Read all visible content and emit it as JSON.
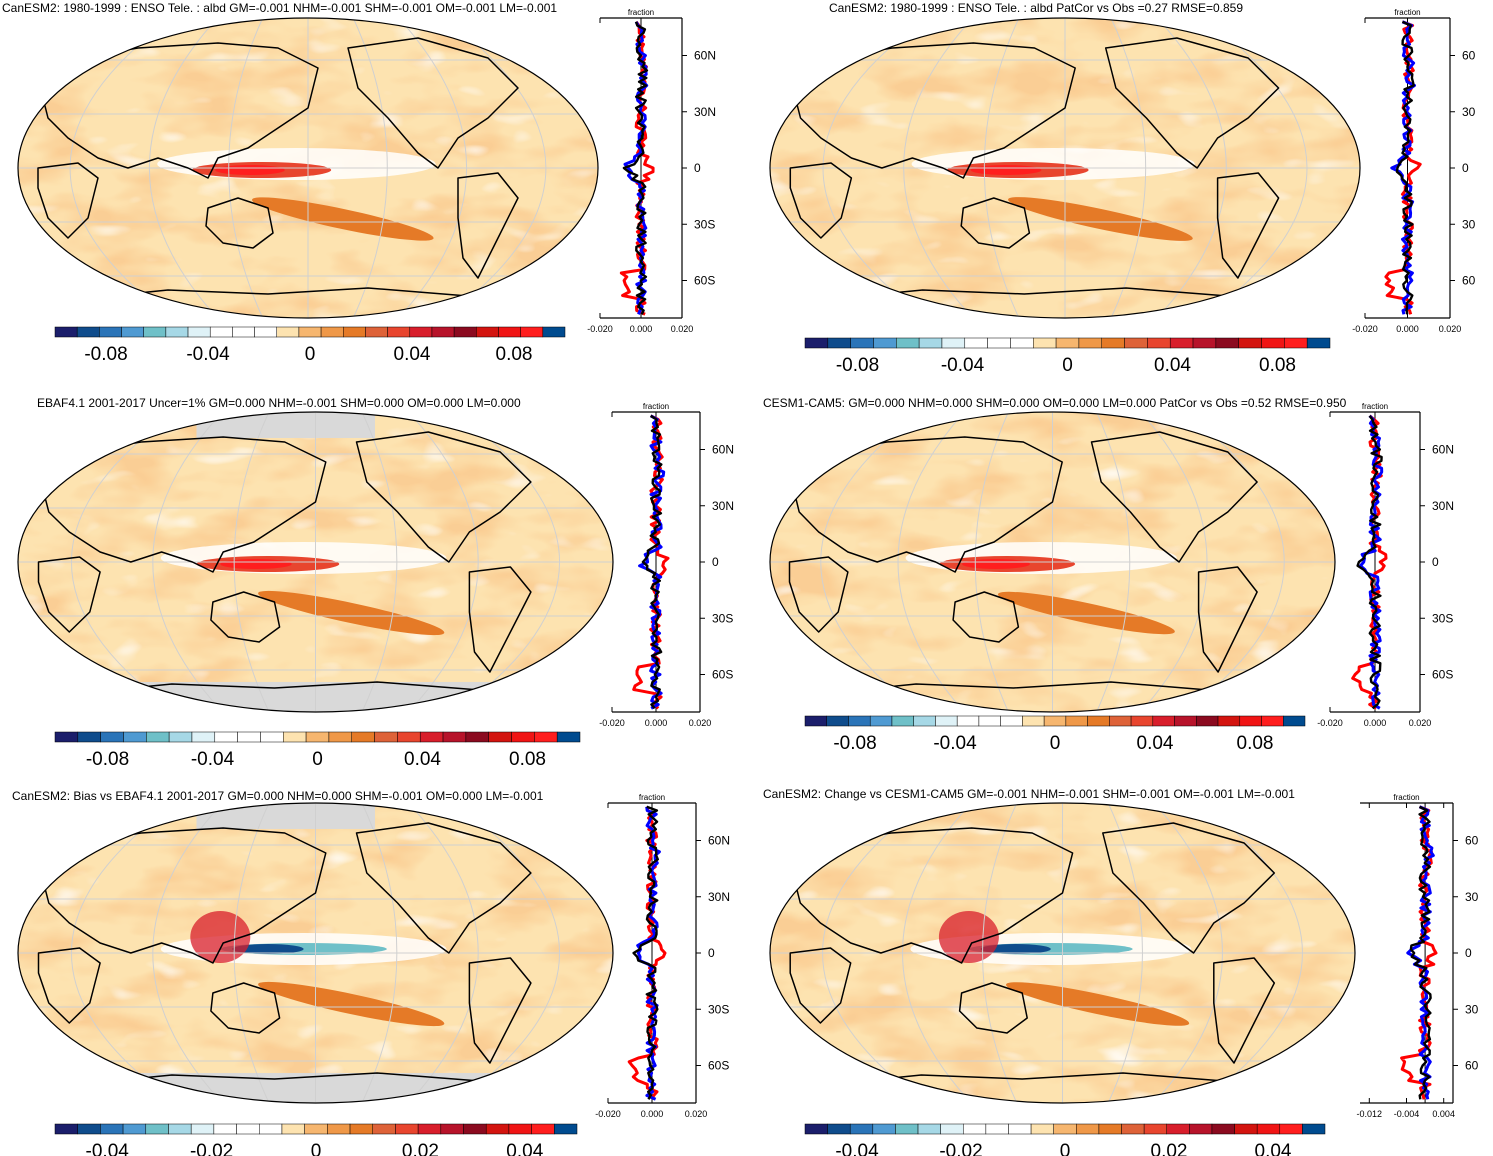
{
  "figure": {
    "description_id": "enso-albedo-teleconnection-panels"
  },
  "colors": {
    "land_outline": "#000000",
    "grid": "#d0d0d0",
    "missing": "#d9d9d9",
    "line_obs": "#ff0000",
    "line_model": "#0000ff",
    "line_mean": "#000000",
    "colorbar_main": [
      "#1b1e6b",
      "#0f4c8c",
      "#2a74b8",
      "#4f9ad2",
      "#6fc0c8",
      "#a6d8e6",
      "#dff2f7",
      "#ffffff",
      "#ffffff",
      "#ffffff",
      "#fde3b0",
      "#f6b66f",
      "#ef9848",
      "#e57a27",
      "#de6238",
      "#e8452e",
      "#d81e2b",
      "#b7132a",
      "#8b0a1f",
      "#d3140f",
      "#f01414",
      "#ff1e1e",
      "#004b8f"
    ],
    "colorbar_diff": [
      "#1b1e6b",
      "#0f4c8c",
      "#2a74b8",
      "#4f9ad2",
      "#6fc0c8",
      "#a6d8e6",
      "#dff2f7",
      "#ffffff",
      "#ffffff",
      "#ffffff",
      "#fde3b0",
      "#f6b66f",
      "#ef9848",
      "#e57a27",
      "#de6238",
      "#e8452e",
      "#d81e2b",
      "#b7132a",
      "#8b0a1f",
      "#d3140f",
      "#f01414",
      "#ff1e1e",
      "#004b8f"
    ]
  },
  "chart_data": [
    {
      "type": "heatmap",
      "panel_id": "p1",
      "title": "CanESM2: 1980-1999 : ENSO Tele. : albd GM=-0.001 NHM=-0.001 SHM=-0.001 OM=-0.001 LM=-0.001",
      "colorbar_ticks": [
        "-0.08",
        "-0.04",
        "0",
        "0.04",
        "0.08"
      ],
      "colorbar_range": [
        -0.1,
        0.1
      ],
      "zonal": {
        "xlabel": "fraction",
        "xticks": [
          "-0.020",
          "0.000",
          "0.020"
        ],
        "xlim": [
          -0.02,
          0.02
        ],
        "yticks": [
          "60N",
          "30N",
          "0",
          "30S",
          "60S"
        ],
        "ylim": [
          -80,
          80
        ]
      }
    },
    {
      "type": "heatmap",
      "panel_id": "p2",
      "title": "CanESM2: 1980-1999 : ENSO Tele. : albd PatCor vs Obs =0.27 RMSE=0.859",
      "colorbar_ticks": [
        "-0.08",
        "-0.04",
        "0",
        "0.04",
        "0.08"
      ],
      "colorbar_range": [
        -0.1,
        0.1
      ],
      "zonal": {
        "xlabel": "fraction",
        "xticks": [
          "-0.020",
          "0.000",
          "0.020"
        ],
        "xlim": [
          -0.02,
          0.02
        ],
        "yticks": [
          "60",
          "30",
          "0",
          "30",
          "60"
        ],
        "ylim": [
          -80,
          80
        ]
      }
    },
    {
      "type": "heatmap",
      "panel_id": "p3",
      "title": "EBAF4.1 2001-2017 Uncer=1% GM=0.000 NHM=-0.001 SHM=0.000 OM=0.000 LM=0.000",
      "colorbar_ticks": [
        "-0.08",
        "-0.04",
        "0",
        "0.04",
        "0.08"
      ],
      "colorbar_range": [
        -0.1,
        0.1
      ],
      "zonal": {
        "xlabel": "fraction",
        "xticks": [
          "-0.020",
          "0.000",
          "0.020"
        ],
        "xlim": [
          -0.02,
          0.02
        ],
        "yticks": [
          "60N",
          "30N",
          "0",
          "30S",
          "60S"
        ],
        "ylim": [
          -80,
          80
        ]
      }
    },
    {
      "type": "heatmap",
      "panel_id": "p4",
      "title": "CESM1-CAM5: GM=0.000 NHM=0.000 SHM=0.000 OM=0.000 LM=0.000 PatCor vs Obs =0.52 RMSE=0.950",
      "colorbar_ticks": [
        "-0.08",
        "-0.04",
        "0",
        "0.04",
        "0.08"
      ],
      "colorbar_range": [
        -0.1,
        0.1
      ],
      "zonal": {
        "xlabel": "fraction",
        "xticks": [
          "-0.020",
          "0.000",
          "0.020"
        ],
        "xlim": [
          -0.02,
          0.02
        ],
        "yticks": [
          "60N",
          "30N",
          "0",
          "30S",
          "60S"
        ],
        "ylim": [
          -80,
          80
        ]
      }
    },
    {
      "type": "heatmap",
      "panel_id": "p5",
      "title": "CanESM2: Bias vs EBAF4.1 2001-2017 GM=0.000 NHM=0.000 SHM=-0.001 OM=0.000 LM=-0.001",
      "colorbar_ticks": [
        "-0.04",
        "-0.02",
        "0",
        "0.02",
        "0.04"
      ],
      "colorbar_range": [
        -0.05,
        0.05
      ],
      "zonal": {
        "xlabel": "fraction",
        "xticks": [
          "-0.020",
          "0.000",
          "0.020"
        ],
        "xlim": [
          -0.02,
          0.02
        ],
        "yticks": [
          "60N",
          "30N",
          "0",
          "30S",
          "60S"
        ],
        "ylim": [
          -80,
          80
        ]
      }
    },
    {
      "type": "heatmap",
      "panel_id": "p6",
      "title": "CanESM2: Change vs CESM1-CAM5 GM=-0.001 NHM=-0.001 SHM=-0.001 OM=-0.001 LM=-0.001",
      "colorbar_ticks": [
        "-0.04",
        "-0.02",
        "0",
        "0.02",
        "0.04"
      ],
      "colorbar_range": [
        -0.05,
        0.05
      ],
      "zonal": {
        "xlabel": "fraction",
        "xticks": [
          "-0.012",
          "-0.004",
          "0.004"
        ],
        "xlim": [
          -0.014,
          0.006
        ],
        "yticks": [
          "60",
          "30",
          "0",
          "30",
          "60"
        ],
        "ylim": [
          -80,
          80
        ]
      }
    }
  ]
}
